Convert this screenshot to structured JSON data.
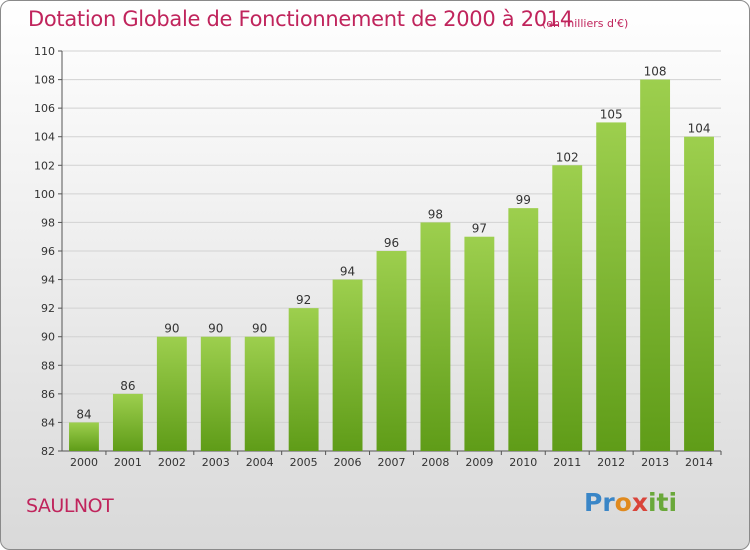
{
  "title": "Dotation Globale de Fonctionnement de 2000 à 2014",
  "subtitle": "(en milliers d'€)",
  "commune": "SAULNOT",
  "logo": {
    "text": "Proxiti",
    "colors": [
      "#3a86c7",
      "#e08a1e",
      "#d9443a",
      "#6aa83a"
    ]
  },
  "chart_data": {
    "type": "bar",
    "title": "Dotation Globale de Fonctionnement de 2000 à 2014",
    "subtitle": "(en milliers d'€)",
    "categories": [
      "2000",
      "2001",
      "2002",
      "2003",
      "2004",
      "2005",
      "2006",
      "2007",
      "2008",
      "2009",
      "2010",
      "2011",
      "2012",
      "2013",
      "2014"
    ],
    "values": [
      84,
      86,
      90,
      90,
      90,
      92,
      94,
      96,
      98,
      97,
      99,
      102,
      105,
      108,
      104
    ],
    "ylim": [
      82,
      110
    ],
    "yticks": [
      82,
      84,
      86,
      88,
      90,
      92,
      94,
      96,
      98,
      100,
      102,
      104,
      106,
      108,
      110
    ],
    "grid": true,
    "bar_color_top": "#9dcf4e",
    "bar_color_bottom": "#5f9c18"
  }
}
